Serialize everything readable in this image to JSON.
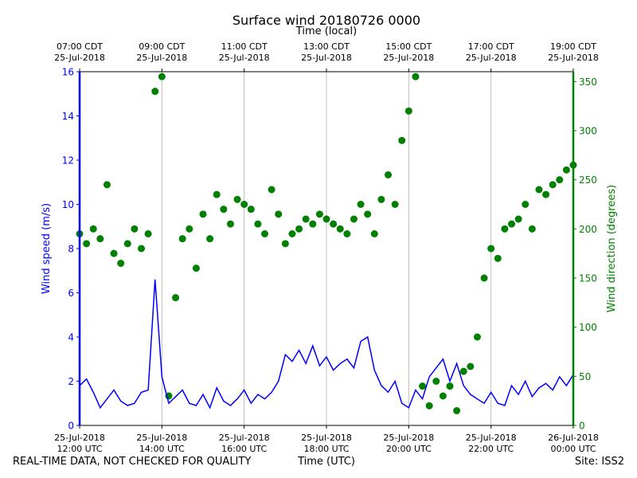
{
  "chart_data": {
    "type": "line",
    "title": "Surface wind 20180726 0000",
    "x2_label": "Time (local)",
    "x_label": "Time (UTC)",
    "y_label": "Wind speed (m/s)",
    "y2_label": "Wind direction (degrees)",
    "footer_left": "REAL-TIME DATA, NOT CHECKED FOR QUALITY",
    "footer_right": "Site: ISS2",
    "xlim": [
      "2018-07-25T12:00",
      "2018-07-26T00:00"
    ],
    "xticks": [
      {
        "value": "2018-07-25T12:00",
        "label": "25-Jul-2018\n12:00 UTC"
      },
      {
        "value": "2018-07-25T14:00",
        "label": "25-Jul-2018\n14:00 UTC"
      },
      {
        "value": "2018-07-25T16:00",
        "label": "25-Jul-2018\n16:00 UTC"
      },
      {
        "value": "2018-07-25T18:00",
        "label": "25-Jul-2018\n18:00 UTC"
      },
      {
        "value": "2018-07-25T20:00",
        "label": "25-Jul-2018\n20:00 UTC"
      },
      {
        "value": "2018-07-25T22:00",
        "label": "25-Jul-2018\n22:00 UTC"
      },
      {
        "value": "2018-07-26T00:00",
        "label": "26-Jul-2018\n00:00 UTC"
      }
    ],
    "x2ticks": [
      {
        "value": "2018-07-25T12:00",
        "label": "07:00 CDT\n25-Jul-2018"
      },
      {
        "value": "2018-07-25T14:00",
        "label": "09:00 CDT\n25-Jul-2018"
      },
      {
        "value": "2018-07-25T16:00",
        "label": "11:00 CDT\n25-Jul-2018"
      },
      {
        "value": "2018-07-25T18:00",
        "label": "13:00 CDT\n25-Jul-2018"
      },
      {
        "value": "2018-07-25T20:00",
        "label": "15:00 CDT\n25-Jul-2018"
      },
      {
        "value": "2018-07-25T22:00",
        "label": "17:00 CDT\n25-Jul-2018"
      },
      {
        "value": "2018-07-26T00:00",
        "label": "19:00 CDT\n25-Jul-2018"
      }
    ],
    "ylim": [
      0,
      16
    ],
    "yticks": [
      0,
      2,
      4,
      6,
      8,
      10,
      12,
      14,
      16
    ],
    "y2lim": [
      0,
      360
    ],
    "y2ticks": [
      0,
      50,
      100,
      150,
      200,
      250,
      300,
      350
    ],
    "grid": true,
    "x": [
      "2018-07-25T12:00",
      "2018-07-25T12:10",
      "2018-07-25T12:20",
      "2018-07-25T12:30",
      "2018-07-25T12:40",
      "2018-07-25T12:50",
      "2018-07-25T13:00",
      "2018-07-25T13:10",
      "2018-07-25T13:20",
      "2018-07-25T13:30",
      "2018-07-25T13:40",
      "2018-07-25T13:50",
      "2018-07-25T14:00",
      "2018-07-25T14:10",
      "2018-07-25T14:20",
      "2018-07-25T14:30",
      "2018-07-25T14:40",
      "2018-07-25T14:50",
      "2018-07-25T15:00",
      "2018-07-25T15:10",
      "2018-07-25T15:20",
      "2018-07-25T15:30",
      "2018-07-25T15:40",
      "2018-07-25T15:50",
      "2018-07-25T16:00",
      "2018-07-25T16:10",
      "2018-07-25T16:20",
      "2018-07-25T16:30",
      "2018-07-25T16:40",
      "2018-07-25T16:50",
      "2018-07-25T17:00",
      "2018-07-25T17:10",
      "2018-07-25T17:20",
      "2018-07-25T17:30",
      "2018-07-25T17:40",
      "2018-07-25T17:50",
      "2018-07-25T18:00",
      "2018-07-25T18:10",
      "2018-07-25T18:20",
      "2018-07-25T18:30",
      "2018-07-25T18:40",
      "2018-07-25T18:50",
      "2018-07-25T19:00",
      "2018-07-25T19:10",
      "2018-07-25T19:20",
      "2018-07-25T19:30",
      "2018-07-25T19:40",
      "2018-07-25T19:50",
      "2018-07-25T20:00",
      "2018-07-25T20:10",
      "2018-07-25T20:20",
      "2018-07-25T20:30",
      "2018-07-25T20:40",
      "2018-07-25T20:50",
      "2018-07-25T21:00",
      "2018-07-25T21:10",
      "2018-07-25T21:20",
      "2018-07-25T21:30",
      "2018-07-25T21:40",
      "2018-07-25T21:50",
      "2018-07-25T22:00",
      "2018-07-25T22:10",
      "2018-07-25T22:20",
      "2018-07-25T22:30",
      "2018-07-25T22:40",
      "2018-07-25T22:50",
      "2018-07-25T23:00",
      "2018-07-25T23:10",
      "2018-07-25T23:20",
      "2018-07-25T23:30",
      "2018-07-25T23:40",
      "2018-07-25T23:50",
      "2018-07-26T00:00"
    ],
    "series": [
      {
        "mark": "line",
        "color": "#0000ff",
        "axis": "y",
        "values": [
          1.8,
          2.1,
          1.5,
          0.8,
          1.2,
          1.6,
          1.1,
          0.9,
          1.0,
          1.5,
          1.6,
          6.6,
          2.2,
          1.0,
          1.3,
          1.6,
          1.0,
          0.9,
          1.4,
          0.8,
          1.7,
          1.1,
          0.9,
          1.2,
          1.6,
          1.0,
          1.4,
          1.2,
          1.5,
          2.0,
          3.2,
          2.9,
          3.4,
          2.8,
          3.6,
          2.7,
          3.1,
          2.5,
          2.8,
          3.0,
          2.6,
          3.8,
          4.0,
          2.5,
          1.8,
          1.5,
          2.0,
          1.0,
          0.8,
          1.6,
          1.2,
          2.2,
          2.6,
          3.0,
          2.0,
          2.8,
          1.8,
          1.4,
          1.2,
          1.0,
          1.5,
          1.0,
          0.9,
          1.8,
          1.4,
          2.0,
          1.3,
          1.7,
          1.9,
          1.6,
          2.2,
          1.8,
          2.3
        ]
      },
      {
        "mark": "dot",
        "color": "#008000",
        "axis": "y2",
        "values": [
          195,
          185,
          200,
          190,
          245,
          175,
          165,
          185,
          200,
          180,
          195,
          340,
          355,
          30,
          130,
          190,
          200,
          160,
          215,
          190,
          235,
          220,
          205,
          230,
          225,
          220,
          205,
          195,
          240,
          215,
          185,
          195,
          200,
          210,
          205,
          215,
          210,
          205,
          200,
          195,
          210,
          225,
          215,
          195,
          230,
          255,
          225,
          290,
          320,
          355,
          40,
          20,
          45,
          30,
          40,
          15,
          55,
          60,
          90,
          150,
          180,
          170,
          200,
          205,
          210,
          225,
          200,
          240,
          235,
          245,
          250,
          260,
          265
        ]
      }
    ]
  }
}
